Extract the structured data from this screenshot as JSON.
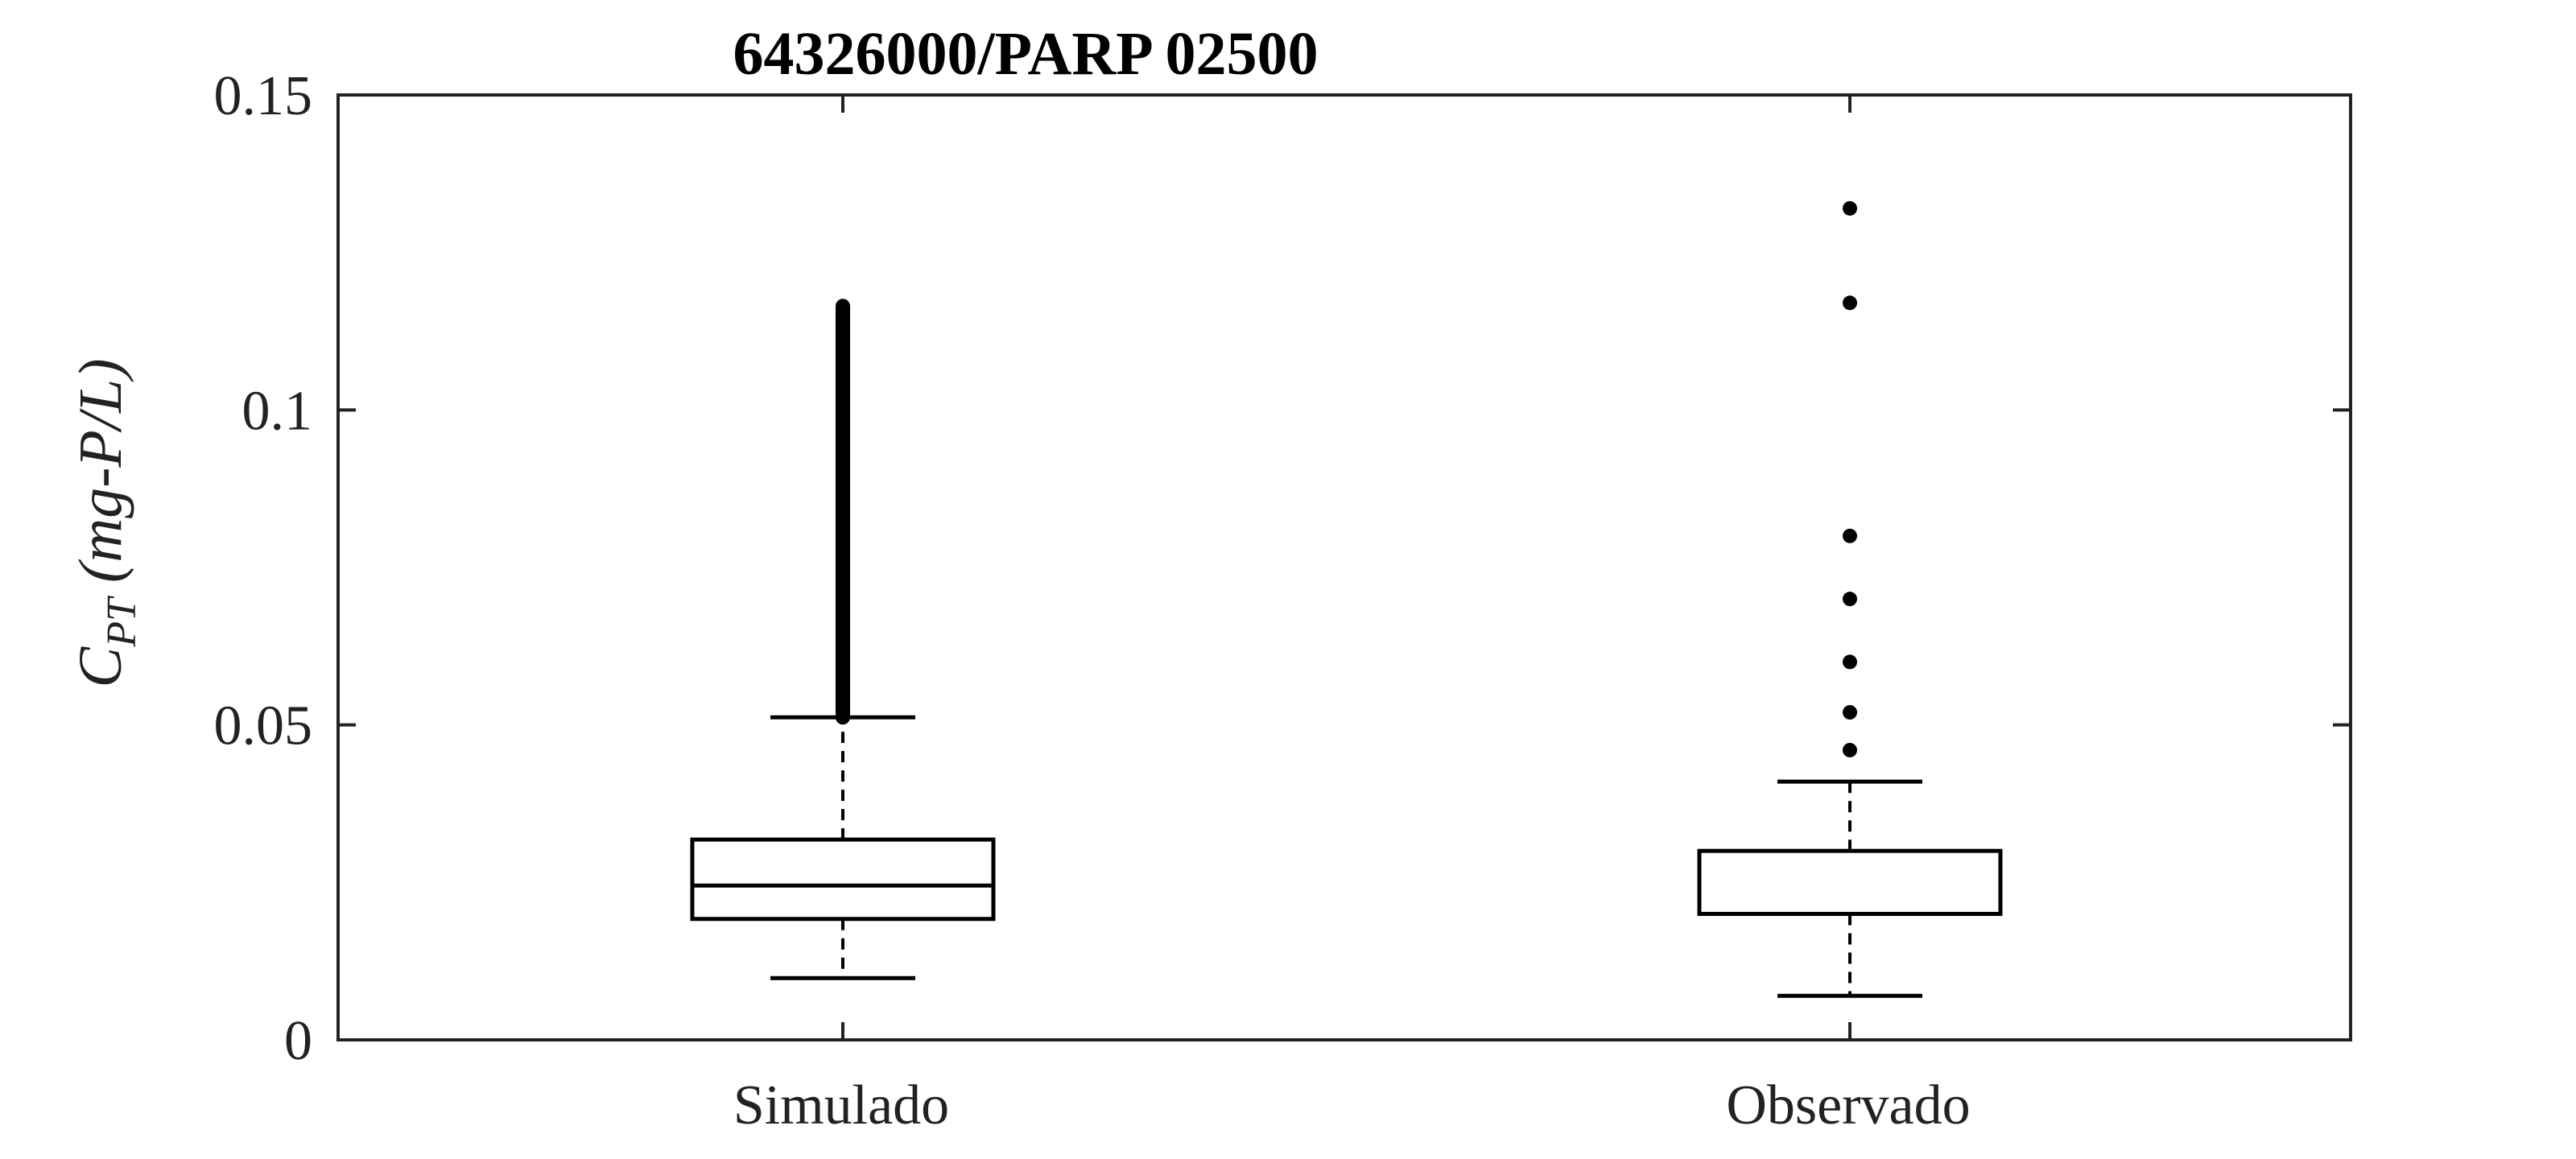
{
  "chart_data": {
    "type": "box",
    "title": "64326000/PARP 02500",
    "ylabel": {
      "main": "C",
      "subscript": "PT",
      "unit": " (mg-P/L)"
    },
    "ylim": [
      0,
      0.15
    ],
    "yticks": [
      0,
      0.05,
      0.1,
      0.15
    ],
    "ytick_labels": [
      "0",
      "0.05",
      "0.1",
      "0.15"
    ],
    "categories": [
      "Simulado",
      "Observado"
    ],
    "boxes": [
      {
        "category": "Simulado",
        "whisker_low": 0.0098,
        "q1": 0.0192,
        "median": 0.0245,
        "q3": 0.0318,
        "whisker_high": 0.0512,
        "outlier_band": [
          0.0512,
          0.1165
        ],
        "outliers": []
      },
      {
        "category": "Observado",
        "whisker_low": 0.007,
        "q1": 0.02,
        "median": 0.02,
        "q3": 0.03,
        "whisker_high": 0.041,
        "outliers": [
          0.046,
          0.052,
          0.06,
          0.07,
          0.08,
          0.117,
          0.132
        ]
      }
    ],
    "grid": false,
    "legend": "none"
  }
}
